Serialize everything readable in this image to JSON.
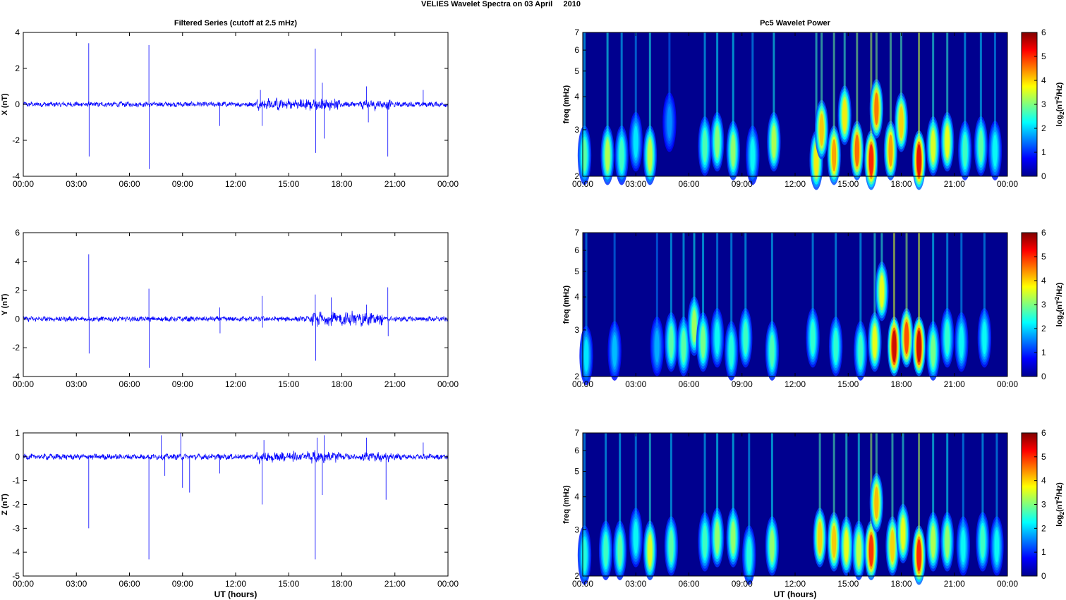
{
  "figure": {
    "suptitle": "VELIES Wavelet Spectra on 03 April     2010",
    "left_title": "Filtered Series (cutoff at 2.5 mHz)",
    "right_title": "Pc5 Wavelet Power",
    "x_label": "UT (hours)",
    "colorbar_label_base": "log",
    "colorbar_label_sub": "2",
    "colorbar_label_mid": "(nT",
    "colorbar_label_sup": "2",
    "colorbar_label_tail": "/Hz)",
    "freq_label": "freq (mHz)",
    "x_ticks": [
      "00:00",
      "03:00",
      "06:00",
      "09:00",
      "12:00",
      "15:00",
      "18:00",
      "21:00",
      "00:00"
    ],
    "colors": {
      "series": "#0000ff",
      "axis": "#000000"
    }
  },
  "chart_data": [
    {
      "type": "line",
      "ylabel": "X (nT)",
      "ylim": [
        -4,
        4
      ],
      "yticks": [
        "4",
        "2",
        "0",
        "-2",
        "-4"
      ],
      "xlim": [
        0,
        24
      ],
      "noise_amp": 0.12,
      "spikes": [
        {
          "t": 3.7,
          "y": 3.4
        },
        {
          "t": 3.72,
          "y": -2.9
        },
        {
          "t": 7.1,
          "y": 3.3
        },
        {
          "t": 7.12,
          "y": -3.6
        },
        {
          "t": 11.1,
          "y": -1.2
        },
        {
          "t": 13.5,
          "y": -1.2
        },
        {
          "t": 13.4,
          "y": 0.8
        },
        {
          "t": 16.5,
          "y": 3.1
        },
        {
          "t": 16.52,
          "y": -2.7
        },
        {
          "t": 16.9,
          "y": 1.2
        },
        {
          "t": 17.0,
          "y": -1.9
        },
        {
          "t": 19.4,
          "y": 1.0
        },
        {
          "t": 19.5,
          "y": -1.0
        },
        {
          "t": 20.6,
          "y": -2.9
        },
        {
          "t": 22.6,
          "y": 0.8
        }
      ],
      "active_windows": [
        {
          "from": 13.2,
          "to": 18.0,
          "amp": 0.35
        },
        {
          "from": 19.0,
          "to": 20.8,
          "amp": 0.3
        }
      ]
    },
    {
      "type": "line",
      "ylabel": "Y (nT)",
      "ylim": [
        -4,
        6
      ],
      "yticks": [
        "6",
        "4",
        "2",
        "0",
        "-2",
        "-4"
      ],
      "xlim": [
        0,
        24
      ],
      "noise_amp": 0.15,
      "spikes": [
        {
          "t": 3.7,
          "y": 4.5
        },
        {
          "t": 3.72,
          "y": -2.4
        },
        {
          "t": 7.1,
          "y": 2.1
        },
        {
          "t": 7.12,
          "y": -3.4
        },
        {
          "t": 11.1,
          "y": 0.8
        },
        {
          "t": 11.12,
          "y": -1.0
        },
        {
          "t": 13.5,
          "y": 1.6
        },
        {
          "t": 13.52,
          "y": -0.6
        },
        {
          "t": 16.5,
          "y": 1.7
        },
        {
          "t": 16.52,
          "y": -2.9
        },
        {
          "t": 17.4,
          "y": 1.5
        },
        {
          "t": 19.4,
          "y": 1.0
        },
        {
          "t": 20.6,
          "y": 2.2
        },
        {
          "t": 20.62,
          "y": -1.2
        }
      ],
      "active_windows": [
        {
          "from": 16.3,
          "to": 20.3,
          "amp": 0.55
        }
      ]
    },
    {
      "type": "line",
      "ylabel": "Z (nT)",
      "ylim": [
        -5,
        1
      ],
      "yticks": [
        "1",
        "0",
        "-1",
        "-2",
        "-3",
        "-4",
        "-5"
      ],
      "xlim": [
        0,
        24
      ],
      "noise_amp": 0.1,
      "spikes": [
        {
          "t": 3.7,
          "y": -3.0
        },
        {
          "t": 7.1,
          "y": -4.3
        },
        {
          "t": 7.8,
          "y": 0.9
        },
        {
          "t": 8.0,
          "y": -0.8
        },
        {
          "t": 8.9,
          "y": 1.0
        },
        {
          "t": 9.0,
          "y": -1.3
        },
        {
          "t": 9.4,
          "y": -1.5
        },
        {
          "t": 11.1,
          "y": -0.7
        },
        {
          "t": 13.5,
          "y": -2.0
        },
        {
          "t": 13.6,
          "y": 0.7
        },
        {
          "t": 16.5,
          "y": -4.3
        },
        {
          "t": 16.6,
          "y": 0.8
        },
        {
          "t": 16.9,
          "y": -1.6
        },
        {
          "t": 17.0,
          "y": 0.9
        },
        {
          "t": 19.4,
          "y": 0.8
        },
        {
          "t": 20.5,
          "y": -1.8
        },
        {
          "t": 22.6,
          "y": 0.6
        }
      ],
      "active_windows": [
        {
          "from": 13.2,
          "to": 18.0,
          "amp": 0.25
        },
        {
          "from": 19.0,
          "to": 20.8,
          "amp": 0.22
        }
      ]
    },
    {
      "type": "heatmap",
      "ylabel": "freq (mHz)",
      "y_scale": "log",
      "ylim": [
        2,
        7
      ],
      "yticks": [
        "7",
        "6",
        "5",
        "4",
        "3",
        "2"
      ],
      "xlim": [
        0,
        24
      ],
      "colorbar": {
        "range": [
          0,
          6
        ],
        "ticks": [
          "6",
          "5",
          "4",
          "3",
          "2",
          "1",
          "0"
        ],
        "colormap": "jet"
      },
      "blobs": [
        {
          "t": 0.1,
          "f": 2.4,
          "p": 2.6
        },
        {
          "t": 1.4,
          "f": 2.4,
          "p": 3.2
        },
        {
          "t": 2.2,
          "f": 2.4,
          "p": 2.4
        },
        {
          "t": 3.0,
          "f": 2.7,
          "p": 1.8
        },
        {
          "t": 3.8,
          "f": 2.4,
          "p": 3.3
        },
        {
          "t": 4.9,
          "f": 3.2,
          "p": 1.2
        },
        {
          "t": 6.9,
          "f": 2.6,
          "p": 2.5
        },
        {
          "t": 7.6,
          "f": 2.7,
          "p": 2.9
        },
        {
          "t": 8.5,
          "f": 2.5,
          "p": 3.0
        },
        {
          "t": 9.6,
          "f": 2.4,
          "p": 2.0
        },
        {
          "t": 10.8,
          "f": 2.7,
          "p": 3.2
        },
        {
          "t": 13.2,
          "f": 2.3,
          "p": 3.8
        },
        {
          "t": 13.5,
          "f": 3.0,
          "p": 4.1
        },
        {
          "t": 14.2,
          "f": 2.4,
          "p": 4.4
        },
        {
          "t": 14.8,
          "f": 3.4,
          "p": 3.8
        },
        {
          "t": 15.5,
          "f": 2.5,
          "p": 4.8
        },
        {
          "t": 16.3,
          "f": 2.3,
          "p": 5.3
        },
        {
          "t": 16.6,
          "f": 3.6,
          "p": 4.7
        },
        {
          "t": 17.4,
          "f": 2.5,
          "p": 4.4
        },
        {
          "t": 18.0,
          "f": 3.2,
          "p": 4.0
        },
        {
          "t": 19.0,
          "f": 2.3,
          "p": 5.6
        },
        {
          "t": 19.8,
          "f": 2.6,
          "p": 3.5
        },
        {
          "t": 20.6,
          "f": 2.7,
          "p": 3.6
        },
        {
          "t": 21.6,
          "f": 2.5,
          "p": 2.4
        },
        {
          "t": 22.5,
          "f": 2.6,
          "p": 2.6
        },
        {
          "t": 23.3,
          "f": 2.5,
          "p": 2.0
        }
      ]
    },
    {
      "type": "heatmap",
      "ylabel": "freq (mHz)",
      "y_scale": "log",
      "ylim": [
        2,
        7
      ],
      "yticks": [
        "7",
        "6",
        "5",
        "4",
        "3",
        "2"
      ],
      "xlim": [
        0,
        24
      ],
      "colorbar": {
        "range": [
          0,
          6
        ],
        "ticks": [
          "6",
          "5",
          "4",
          "3",
          "2",
          "1",
          "0"
        ],
        "colormap": "jet"
      },
      "blobs": [
        {
          "t": 0.2,
          "f": 2.4,
          "p": 1.8
        },
        {
          "t": 1.8,
          "f": 2.5,
          "p": 1.5
        },
        {
          "t": 4.2,
          "f": 2.6,
          "p": 1.4
        },
        {
          "t": 5.0,
          "f": 2.7,
          "p": 2.6
        },
        {
          "t": 5.7,
          "f": 2.6,
          "p": 2.6
        },
        {
          "t": 6.3,
          "f": 3.1,
          "p": 3.1
        },
        {
          "t": 6.8,
          "f": 2.7,
          "p": 2.8
        },
        {
          "t": 7.6,
          "f": 2.8,
          "p": 2.0
        },
        {
          "t": 8.4,
          "f": 2.5,
          "p": 2.2
        },
        {
          "t": 9.2,
          "f": 2.8,
          "p": 2.4
        },
        {
          "t": 10.7,
          "f": 2.5,
          "p": 2.5
        },
        {
          "t": 13.0,
          "f": 2.8,
          "p": 2.3
        },
        {
          "t": 14.3,
          "f": 2.6,
          "p": 2.3
        },
        {
          "t": 15.7,
          "f": 2.5,
          "p": 2.4
        },
        {
          "t": 16.5,
          "f": 2.7,
          "p": 3.6
        },
        {
          "t": 16.9,
          "f": 4.2,
          "p": 3.6
        },
        {
          "t": 17.6,
          "f": 2.6,
          "p": 5.8
        },
        {
          "t": 18.3,
          "f": 2.8,
          "p": 5.0
        },
        {
          "t": 19.0,
          "f": 2.6,
          "p": 5.8
        },
        {
          "t": 19.8,
          "f": 2.5,
          "p": 2.8
        },
        {
          "t": 20.6,
          "f": 2.8,
          "p": 2.3
        },
        {
          "t": 21.4,
          "f": 2.7,
          "p": 2.0
        },
        {
          "t": 22.7,
          "f": 2.8,
          "p": 2.0
        }
      ]
    },
    {
      "type": "heatmap",
      "ylabel": "freq (mHz)",
      "y_scale": "log",
      "ylim": [
        2,
        7
      ],
      "yticks": [
        "7",
        "6",
        "5",
        "4",
        "3",
        "2"
      ],
      "xlim": [
        0,
        24
      ],
      "colorbar": {
        "range": [
          0,
          6
        ],
        "ticks": [
          "6",
          "5",
          "4",
          "3",
          "2",
          "1",
          "0"
        ],
        "colormap": "jet"
      },
      "blobs": [
        {
          "t": 0.1,
          "f": 2.4,
          "p": 2.2
        },
        {
          "t": 1.3,
          "f": 2.5,
          "p": 2.4
        },
        {
          "t": 2.1,
          "f": 2.5,
          "p": 2.6
        },
        {
          "t": 3.0,
          "f": 2.8,
          "p": 2.0
        },
        {
          "t": 3.8,
          "f": 2.5,
          "p": 3.5
        },
        {
          "t": 5.0,
          "f": 2.6,
          "p": 2.6
        },
        {
          "t": 6.9,
          "f": 2.7,
          "p": 2.4
        },
        {
          "t": 7.6,
          "f": 2.8,
          "p": 3.0
        },
        {
          "t": 8.5,
          "f": 2.8,
          "p": 3.0
        },
        {
          "t": 9.4,
          "f": 2.4,
          "p": 2.2
        },
        {
          "t": 10.7,
          "f": 2.6,
          "p": 3.0
        },
        {
          "t": 13.4,
          "f": 2.8,
          "p": 4.0
        },
        {
          "t": 14.2,
          "f": 2.7,
          "p": 4.1
        },
        {
          "t": 14.9,
          "f": 2.6,
          "p": 3.6
        },
        {
          "t": 15.6,
          "f": 2.5,
          "p": 3.3
        },
        {
          "t": 16.3,
          "f": 2.5,
          "p": 5.2
        },
        {
          "t": 16.6,
          "f": 3.8,
          "p": 4.2
        },
        {
          "t": 17.5,
          "f": 2.6,
          "p": 4.0
        },
        {
          "t": 18.1,
          "f": 2.9,
          "p": 3.6
        },
        {
          "t": 19.0,
          "f": 2.4,
          "p": 5.3
        },
        {
          "t": 19.8,
          "f": 2.7,
          "p": 3.2
        },
        {
          "t": 20.6,
          "f": 2.7,
          "p": 3.0
        },
        {
          "t": 21.5,
          "f": 2.6,
          "p": 2.0
        },
        {
          "t": 22.6,
          "f": 2.7,
          "p": 2.4
        },
        {
          "t": 23.4,
          "f": 2.6,
          "p": 2.0
        }
      ]
    }
  ]
}
